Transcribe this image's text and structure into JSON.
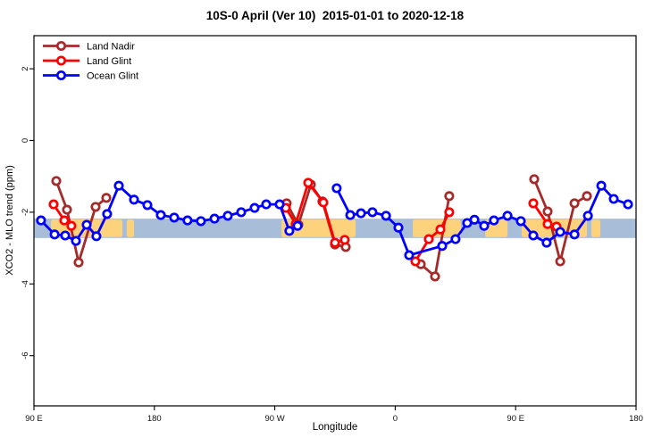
{
  "figure": {
    "title": "10S-0 April (Ver 10)  2015-01-01 to 2020-12-18",
    "xlabel": "Longitude",
    "ylabel": "XCO2 - MLO trend (ppm)"
  },
  "chart_data": {
    "type": "line",
    "title": "10S-0 April (Ver 10)  2015-01-01 to 2020-12-18",
    "xlabel": "Longitude",
    "ylabel": "XCO2 - MLO trend (ppm)",
    "grid": false,
    "x_axis": {
      "note": "axis spans 450 deg: 90E -> 180 -> 90W -> 0 -> 90E -> 180 (wraps)",
      "range_deg": [
        0,
        450
      ],
      "ticks": [
        {
          "d": 0,
          "label": "90 E"
        },
        {
          "d": 90,
          "label": "180"
        },
        {
          "d": 180,
          "label": "90 W"
        },
        {
          "d": 270,
          "label": "0"
        },
        {
          "d": 360,
          "label": "90 E"
        },
        {
          "d": 450,
          "label": "180"
        }
      ]
    },
    "y_axis": {
      "range": [
        -7.4,
        2.9
      ],
      "ticks": [
        2,
        0,
        -2,
        -4,
        -6
      ]
    },
    "reference_band": {
      "y_top": -2.18,
      "y_bottom": -2.72,
      "color": "#A8BED8",
      "meaning": "ocean strip of 10S-0 latitude band map"
    },
    "land_patches": {
      "color": "#FCD27D",
      "meaning": "land areas within 10S-0 band (map strip)",
      "segments_deg": [
        [
          12.7,
          66.1
        ],
        [
          69.4,
          74.8
        ],
        [
          185.0,
          240.4
        ],
        [
          283.1,
          319.1
        ],
        [
          337.2,
          353.9
        ],
        [
          364.5,
          413.3
        ],
        [
          416.6,
          423.3
        ]
      ]
    },
    "legend": {
      "position": "top-left",
      "entries": [
        "Land Nadir",
        "Land Glint",
        "Ocean Glint"
      ]
    },
    "series": [
      {
        "name": "Land Nadir",
        "color": "#A52A2A",
        "segments": [
          [
            [
              16.7,
              -1.13
            ],
            [
              24.7,
              -1.93
            ],
            [
              33.4,
              -3.4
            ],
            [
              46.1,
              -1.85
            ],
            [
              54.1,
              -1.6
            ]
          ],
          [
            [
              188.9,
              -1.75
            ],
            [
              197.6,
              -2.35
            ],
            [
              207.0,
              -1.23
            ],
            [
              215.6,
              -1.7
            ],
            [
              225.0,
              -2.9
            ],
            [
              233.0,
              -2.97
            ]
          ],
          [
            [
              289.1,
              -3.45
            ],
            [
              299.8,
              -3.79
            ],
            [
              310.4,
              -1.55
            ]
          ],
          [
            [
              373.9,
              -1.08
            ],
            [
              383.9,
              -1.98
            ],
            [
              393.3,
              -3.37
            ],
            [
              404.0,
              -1.75
            ],
            [
              413.3,
              -1.55
            ]
          ]
        ]
      },
      {
        "name": "Land Glint",
        "color": "#FF0000",
        "segments": [
          [
            [
              14.7,
              -1.78
            ],
            [
              22.7,
              -2.23
            ],
            [
              28.0,
              -2.38
            ]
          ],
          [
            [
              188.3,
              -1.88
            ],
            [
              195.6,
              -2.33
            ],
            [
              205.0,
              -1.18
            ],
            [
              216.3,
              -1.73
            ],
            [
              225.0,
              -2.85
            ],
            [
              232.3,
              -2.77
            ]
          ],
          [
            [
              285.1,
              -3.37
            ],
            [
              295.1,
              -2.75
            ],
            [
              303.8,
              -2.48
            ],
            [
              310.4,
              -2.0
            ]
          ],
          [
            [
              373.2,
              -1.75
            ],
            [
              383.9,
              -2.33
            ],
            [
              390.6,
              -2.4
            ]
          ]
        ]
      },
      {
        "name": "Ocean Glint",
        "color": "#0000FF",
        "segments": [
          [
            [
              5.3,
              -2.23
            ],
            [
              15.4,
              -2.62
            ],
            [
              23.4,
              -2.65
            ],
            [
              31.4,
              -2.8
            ],
            [
              39.4,
              -2.35
            ],
            [
              46.7,
              -2.67
            ],
            [
              54.7,
              -2.05
            ],
            [
              63.4,
              -1.26
            ],
            [
              74.8,
              -1.65
            ],
            [
              84.8,
              -1.8
            ],
            [
              94.8,
              -2.08
            ],
            [
              104.8,
              -2.15
            ],
            [
              114.8,
              -2.23
            ],
            [
              124.8,
              -2.25
            ],
            [
              134.9,
              -2.18
            ],
            [
              144.9,
              -2.1
            ],
            [
              154.9,
              -2.0
            ],
            [
              164.9,
              -1.88
            ],
            [
              173.6,
              -1.78
            ],
            [
              183.6,
              -1.78
            ],
            [
              190.9,
              -2.52
            ],
            [
              197.0,
              -2.38
            ]
          ],
          [
            [
              226.3,
              -1.33
            ],
            [
              236.4,
              -2.08
            ],
            [
              244.4,
              -2.03
            ],
            [
              253.0,
              -2.0
            ],
            [
              263.1,
              -2.1
            ],
            [
              272.4,
              -2.43
            ],
            [
              280.4,
              -3.2
            ],
            [
              305.1,
              -2.94
            ],
            [
              315.1,
              -2.75
            ],
            [
              323.8,
              -2.3
            ],
            [
              329.2,
              -2.21
            ],
            [
              336.5,
              -2.38
            ],
            [
              343.8,
              -2.23
            ],
            [
              353.9,
              -2.1
            ],
            [
              363.9,
              -2.25
            ],
            [
              373.2,
              -2.65
            ],
            [
              383.2,
              -2.85
            ],
            [
              393.3,
              -2.55
            ],
            [
              404.0,
              -2.62
            ],
            [
              414.0,
              -2.1
            ],
            [
              424.0,
              -1.26
            ],
            [
              433.3,
              -1.63
            ],
            [
              444.0,
              -1.78
            ]
          ]
        ]
      }
    ]
  }
}
